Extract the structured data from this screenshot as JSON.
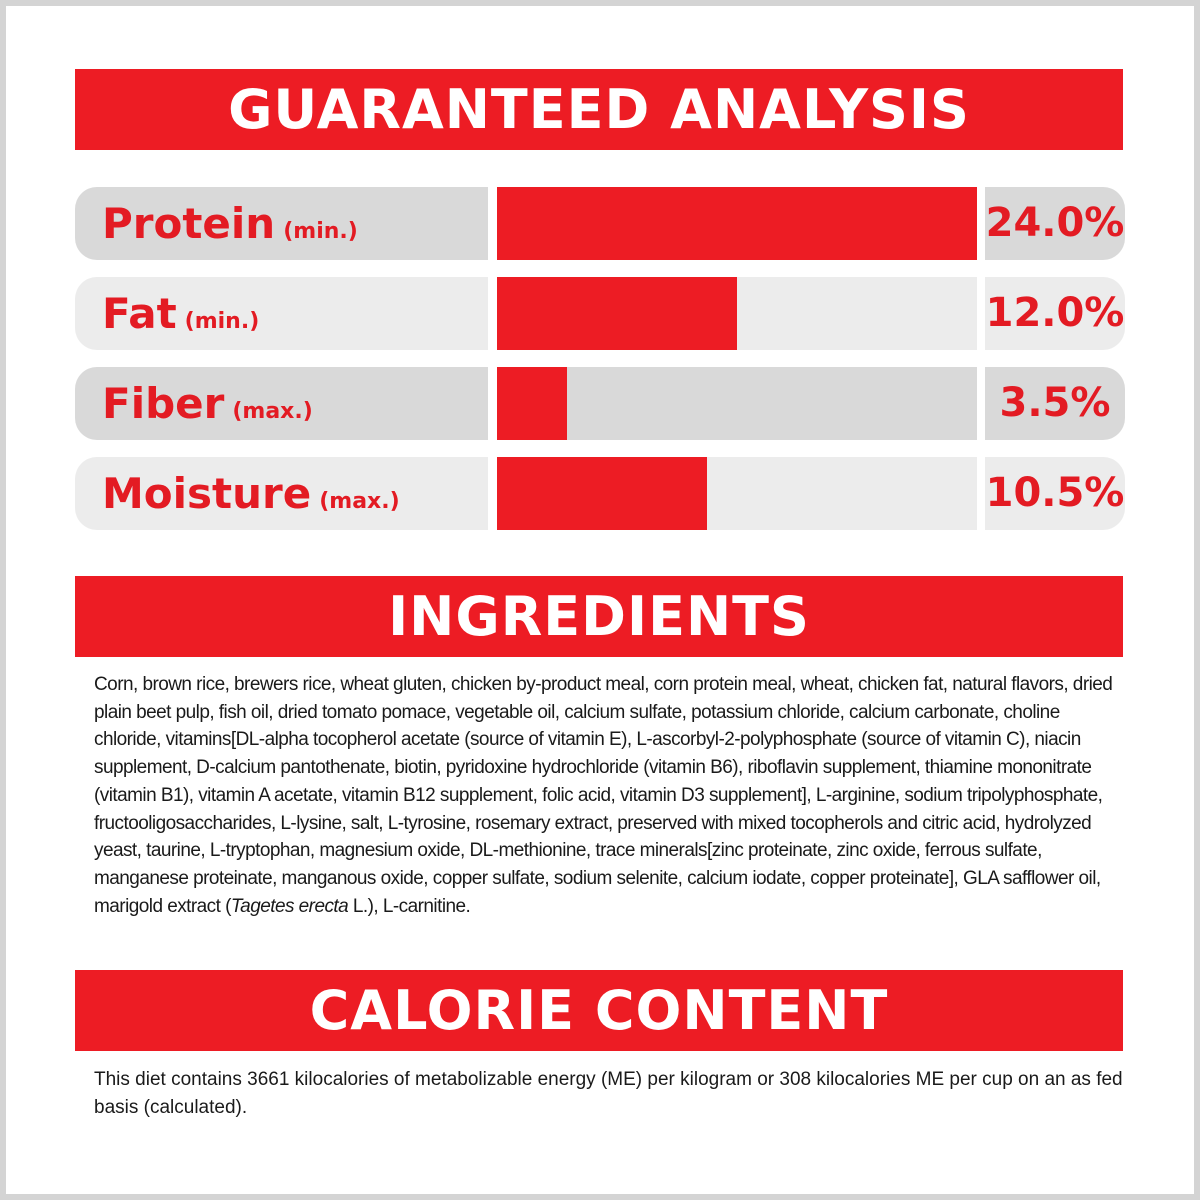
{
  "guaranteed_analysis": {
    "title": "GUARANTEED ANALYSIS",
    "rows": [
      {
        "name": "Protein",
        "qualifier": "(min.)",
        "value": "24.0%"
      },
      {
        "name": "Fat",
        "qualifier": "(min.)",
        "value": "12.0%"
      },
      {
        "name": "Fiber",
        "qualifier": "(max.)",
        "value": "3.5%"
      },
      {
        "name": "Moisture",
        "qualifier": "(max.)",
        "value": "10.5%"
      }
    ]
  },
  "chart_data": {
    "type": "bar",
    "orientation": "horizontal",
    "categories": [
      "Protein",
      "Fat",
      "Fiber",
      "Moisture"
    ],
    "values": [
      24.0,
      12.0,
      3.5,
      10.5
    ],
    "unit": "%",
    "xlim": [
      0,
      24
    ],
    "grid": false,
    "colors": {
      "bar": "#ed1c24",
      "track_dark": "#d9d9d9",
      "track_light": "#ececec"
    }
  },
  "ingredients": {
    "title": "INGREDIENTS",
    "text_before": "Corn, brown rice, brewers rice, wheat gluten, chicken by-product meal, corn protein meal, wheat, chicken fat, natural flavors, dried plain beet pulp, fish oil, dried tomato pomace, vegetable oil, calcium sulfate, potassium chloride, calcium carbonate, choline chloride, vitamins[DL-alpha tocopherol acetate (source of vitamin E), L-ascorbyl-2-polyphosphate (source of vitamin C), niacin supplement, D-calcium pantothenate, biotin, pyridoxine hydrochloride (vitamin B6), riboflavin supplement, thiamine mononitrate (vitamin B1), vitamin A acetate, vitamin B12 supplement, folic acid, vitamin D3 supplement], L-arginine, sodium tripolyphosphate, fructooligosaccharides, L-lysine, salt, L-tyrosine, rosemary extract, preserved with mixed tocopherols and citric acid, hydrolyzed yeast, taurine, L-tryptophan, magnesium oxide, DL-methionine, trace minerals[zinc proteinate, zinc oxide, ferrous sulfate, manganese proteinate, manganous oxide, copper sulfate, sodium selenite, calcium iodate, copper proteinate], GLA safflower oil, marigold extract (",
    "text_italic": "Tagetes erecta",
    "text_after": " L.), L-carnitine."
  },
  "calorie_content": {
    "title": "CALORIE CONTENT",
    "text": "This diet contains 3661 kilocalories of metabolizable energy (ME) per kilogram or 308 kilocalories ME per cup on an as fed basis (calculated)."
  }
}
